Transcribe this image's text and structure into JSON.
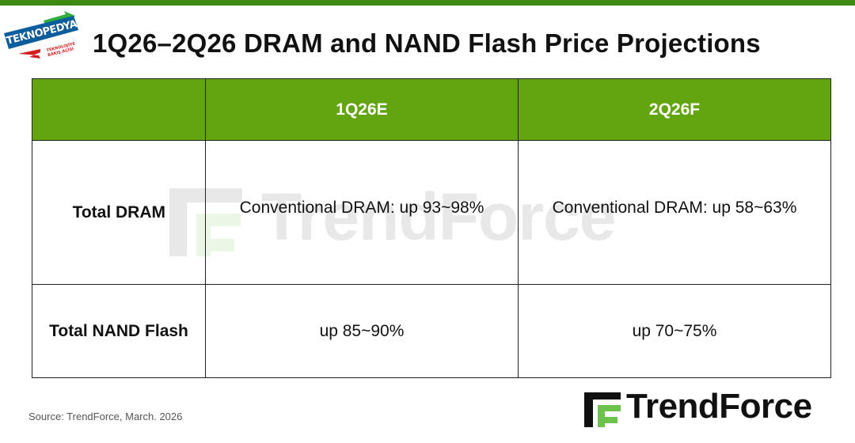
{
  "header": {
    "title": "1Q26–2Q26 DRAM and NAND Flash Price Projections"
  },
  "badge": {
    "name": "TEKNOPEDYA",
    "tagline": "TEKNOLOJİYE BAKIŞ AÇISI"
  },
  "table": {
    "columns": [
      "",
      "1Q26E",
      "2Q26F"
    ],
    "rows": [
      {
        "label": "Total DRAM",
        "values": [
          "Conventional DRAM: up 93~98%",
          "Conventional DRAM: up 58~63%"
        ]
      },
      {
        "label": "Total NAND Flash",
        "values": [
          "up 85~90%",
          "up 70~75%"
        ]
      }
    ]
  },
  "footer": {
    "source": "Source: TrendForce, March. 2026"
  },
  "branding": {
    "logo_text": "TrendForce",
    "watermark_text": "TrendForce"
  },
  "colors": {
    "top_bar": "#3f8a12",
    "header_fill": "#62a511",
    "header_text": "#ffffff",
    "logo_green": "#6cc24a"
  },
  "icons": {
    "badge": "teknopedya-logo-icon",
    "logo": "trendforce-logo-icon"
  }
}
